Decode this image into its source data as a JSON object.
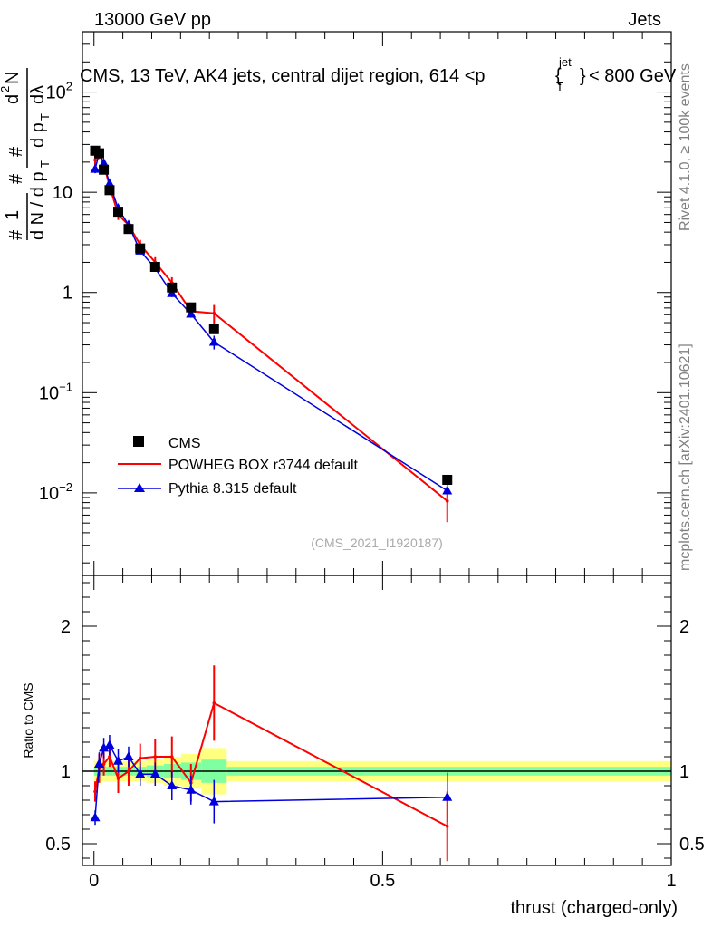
{
  "header": {
    "left": "13000 GeV pp",
    "right": "Jets",
    "title_main": "CMS, 13 TeV, AK4 jets, central dijet region, 614 <p",
    "title_sup": "jet",
    "title_sub": "T",
    "title_end": "< 800 GeV",
    "side_top": "Rivet 4.1.0, ≥ 100k events",
    "side_bottom": "mcplots.cern.ch [arXiv:2401.10621]",
    "analysis_id": "(CMS_2021_I1920187)"
  },
  "ylabel_main": "1/N dN/dp_T d²N/dp_T dλ",
  "ylabel_ratio": "Ratio to CMS",
  "colors": {
    "data": "#000000",
    "powheg": "#ff0000",
    "pythia": "#0000dd",
    "band_inner": "#7fffa0",
    "band_outer": "#ffff80"
  },
  "chart_data": [
    {
      "type": "scatter",
      "panel": "main",
      "xlabel": "thrust (charged-only)",
      "ylabel": "1/N dN/dpT d²N/dpT dλ",
      "yscale": "log",
      "xlim": [
        -0.02,
        1.0
      ],
      "ylim": [
        0.0015,
        400
      ],
      "y_ticks": [
        {
          "v": 0.01,
          "label": "10",
          "exp": "−2"
        },
        {
          "v": 0.1,
          "label": "10",
          "exp": "−1"
        },
        {
          "v": 1,
          "label": "1",
          "exp": ""
        },
        {
          "v": 10,
          "label": "10",
          "exp": ""
        },
        {
          "v": 100,
          "label": "10",
          "exp": "2"
        }
      ],
      "legend": [
        "CMS",
        "POWHEG BOX r3744 default",
        "Pythia 8.315 default"
      ],
      "series": [
        {
          "name": "CMS",
          "x": [
            0.002,
            0.009,
            0.017,
            0.027,
            0.042,
            0.06,
            0.08,
            0.106,
            0.135,
            0.168,
            0.208,
            0.612
          ],
          "y": [
            26,
            24.5,
            16.8,
            10.5,
            6.4,
            4.3,
            2.75,
            1.8,
            1.12,
            0.71,
            0.43,
            0.0135
          ]
        },
        {
          "name": "POWHEG BOX r3744 default",
          "x": [
            0.002,
            0.009,
            0.017,
            0.027,
            0.042,
            0.06,
            0.08,
            0.106,
            0.135,
            0.168,
            0.208,
            0.612
          ],
          "y": [
            21,
            24.5,
            19,
            11.5,
            6.0,
            4.7,
            3.0,
            2.0,
            1.25,
            0.65,
            0.62,
            0.0083
          ],
          "err": [
            4,
            3,
            2,
            1.2,
            0.7,
            0.5,
            0.35,
            0.25,
            0.17,
            0.08,
            0.13,
            0.0032
          ]
        },
        {
          "name": "Pythia 8.315 default",
          "x": [
            0.002,
            0.009,
            0.017,
            0.027,
            0.042,
            0.06,
            0.08,
            0.106,
            0.135,
            0.168,
            0.208,
            0.612
          ],
          "y": [
            17,
            24.5,
            19.5,
            12.2,
            6.9,
            4.7,
            2.6,
            1.75,
            0.98,
            0.61,
            0.32,
            0.0105
          ],
          "err": [
            1.5,
            2,
            1.5,
            0.9,
            0.5,
            0.3,
            0.2,
            0.13,
            0.08,
            0.05,
            0.05,
            0.0015
          ]
        }
      ]
    },
    {
      "type": "line",
      "panel": "ratio",
      "xlabel": "thrust (charged-only)",
      "ylabel": "Ratio to CMS",
      "xlim": [
        -0.02,
        1.0
      ],
      "ylim": [
        0.35,
        2.35
      ],
      "x_ticks": [
        {
          "v": 0,
          "label": "0"
        },
        {
          "v": 0.5,
          "label": "0.5"
        },
        {
          "v": 1,
          "label": "1"
        }
      ],
      "y_ticks": [
        {
          "v": 0.5,
          "label": "0.5"
        },
        {
          "v": 1,
          "label": "1"
        },
        {
          "v": 2,
          "label": "2"
        }
      ],
      "bands": {
        "edges": [
          0,
          0.005,
          0.013,
          0.021,
          0.033,
          0.051,
          0.069,
          0.091,
          0.121,
          0.151,
          0.186,
          0.23,
          1.0
        ],
        "inner": [
          0.03,
          0.04,
          0.03,
          0.03,
          0.03,
          0.03,
          0.03,
          0.04,
          0.05,
          0.06,
          0.08,
          0.03
        ],
        "outer": [
          0.07,
          0.09,
          0.07,
          0.07,
          0.07,
          0.07,
          0.07,
          0.08,
          0.1,
          0.12,
          0.16,
          0.07
        ]
      },
      "series": [
        {
          "name": "POWHEG BOX r3744 default",
          "x": [
            0.002,
            0.009,
            0.017,
            0.027,
            0.042,
            0.06,
            0.08,
            0.106,
            0.135,
            0.168,
            0.208,
            0.612
          ],
          "y": [
            0.86,
            1.02,
            1.05,
            1.1,
            0.95,
            1.0,
            1.09,
            1.1,
            1.1,
            0.92,
            1.47,
            0.62
          ],
          "err": [
            0.07,
            0.1,
            0.08,
            0.07,
            0.1,
            0.1,
            0.1,
            0.12,
            0.14,
            0.13,
            0.26,
            0.24
          ]
        },
        {
          "name": "Pythia 8.315 default",
          "x": [
            0.002,
            0.009,
            0.017,
            0.027,
            0.042,
            0.06,
            0.08,
            0.106,
            0.135,
            0.168,
            0.208,
            0.612
          ],
          "y": [
            0.68,
            1.05,
            1.16,
            1.18,
            1.07,
            1.1,
            0.98,
            0.98,
            0.9,
            0.87,
            0.79,
            0.82
          ],
          "err": [
            0.05,
            0.08,
            0.07,
            0.07,
            0.08,
            0.07,
            0.08,
            0.08,
            0.1,
            0.1,
            0.15,
            0.17
          ]
        }
      ]
    }
  ]
}
